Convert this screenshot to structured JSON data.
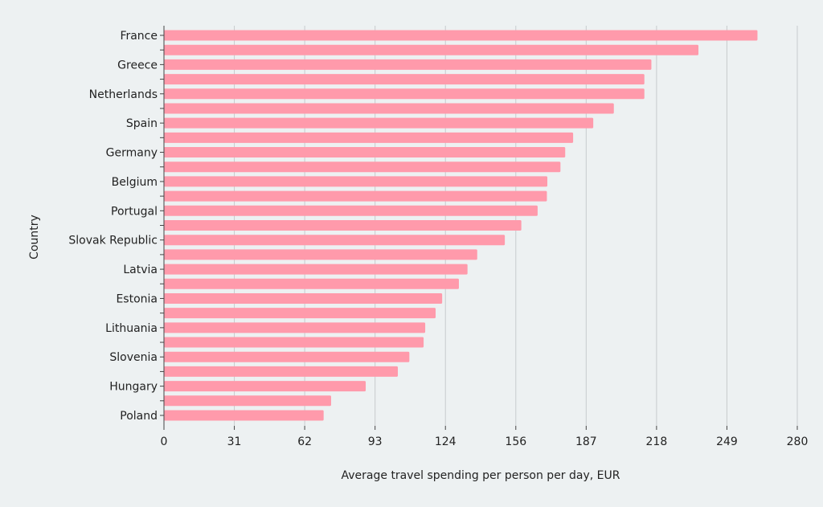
{
  "chart_data": {
    "type": "bar",
    "orientation": "horizontal",
    "xlabel": "Average travel spending per person per day, EUR",
    "ylabel": "Country",
    "xlim": [
      0,
      280
    ],
    "xticks": [
      "0",
      "31",
      "62",
      "93",
      "124",
      "156",
      "187",
      "218",
      "249",
      "280"
    ],
    "grid": "vertical",
    "bar_color": "#ff9aab",
    "background": "#edf1f2",
    "categories": [
      "France",
      "",
      "Greece",
      "",
      "Netherlands",
      "",
      "Spain",
      "",
      "Germany",
      "",
      "Belgium",
      "",
      "Portugal",
      "",
      "Slovak Republic",
      "",
      "Latvia",
      "",
      "Estonia",
      "",
      "Lithuania",
      "",
      "Slovenia",
      "",
      "Hungary",
      "",
      "Poland"
    ],
    "values": [
      262.4,
      236.3,
      215.5,
      212.4,
      212.4,
      198.9,
      189.8,
      180.9,
      177.4,
      175.3,
      169.5,
      169.3,
      165.2,
      158.0,
      150.7,
      138.5,
      134.2,
      130.4,
      123.0,
      120.1,
      115.5,
      114.8,
      108.5,
      103.4,
      89.2,
      73.9,
      70.6
    ]
  }
}
